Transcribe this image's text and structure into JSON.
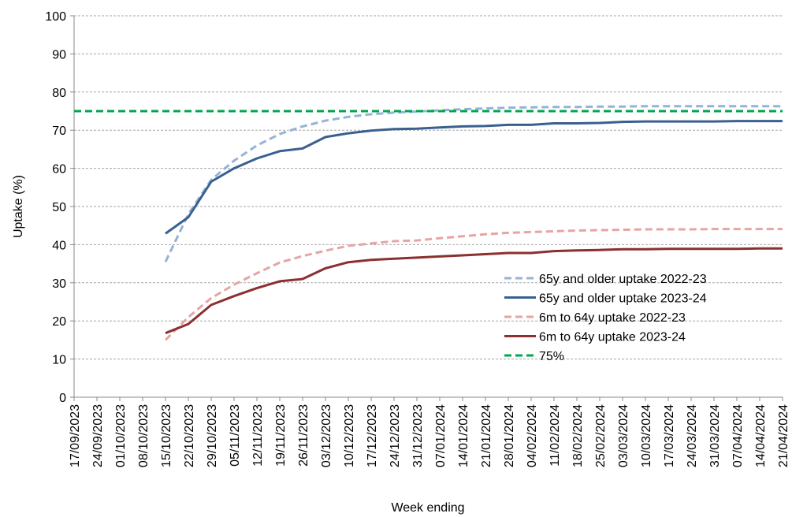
{
  "chart_data": {
    "type": "line",
    "title": "",
    "xlabel": "Week ending",
    "ylabel": "Uptake (%)",
    "ylim": [
      0,
      100
    ],
    "yticks": [
      0,
      10,
      20,
      30,
      40,
      50,
      60,
      70,
      80,
      90,
      100
    ],
    "grid": "horizontal",
    "legend_position": "bottom-right",
    "categories": [
      "17/09/2023",
      "24/09/2023",
      "01/10/2023",
      "08/10/2023",
      "15/10/2023",
      "22/10/2023",
      "29/10/2023",
      "05/11/2023",
      "12/11/2023",
      "19/11/2023",
      "26/11/2023",
      "03/12/2023",
      "10/12/2023",
      "17/12/2023",
      "24/12/2023",
      "31/12/2023",
      "07/01/2024",
      "14/01/2024",
      "21/01/2024",
      "28/01/2024",
      "04/02/2024",
      "11/02/2024",
      "18/02/2024",
      "25/02/2024",
      "03/03/2024",
      "10/03/2024",
      "17/03/2024",
      "24/03/2024",
      "31/03/2024",
      "07/04/2024",
      "14/04/2024",
      "21/04/2024"
    ],
    "series": [
      {
        "name": "65y and older uptake 2022-23",
        "color": "#95b3d7",
        "dash": "dashed",
        "values": [
          null,
          null,
          null,
          null,
          35.5,
          48,
          57,
          62,
          66,
          69,
          71,
          72.5,
          73.5,
          74.2,
          74.6,
          74.9,
          75.2,
          75.5,
          75.7,
          75.9,
          76,
          76.1,
          76.1,
          76.2,
          76.2,
          76.3,
          76.3,
          76.3,
          76.3,
          76.3,
          76.3,
          76.3
        ]
      },
      {
        "name": "65y and older uptake 2023-24",
        "color": "#3a6090",
        "dash": "solid",
        "values": [
          null,
          null,
          null,
          null,
          42.9,
          47.2,
          56.5,
          60,
          62.6,
          64.5,
          65.2,
          68.2,
          69.2,
          69.9,
          70.3,
          70.4,
          70.7,
          71,
          71.1,
          71.4,
          71.4,
          71.8,
          71.8,
          71.9,
          72.2,
          72.3,
          72.3,
          72.3,
          72.3,
          72.4,
          72.4,
          72.4
        ]
      },
      {
        "name": "6m to 64y uptake 2022-23",
        "color": "#e6a4a4",
        "dash": "dashed",
        "values": [
          null,
          null,
          null,
          null,
          15,
          21,
          26,
          29.5,
          32.5,
          35.3,
          37,
          38.4,
          39.7,
          40.3,
          40.9,
          41.1,
          41.7,
          42.2,
          42.7,
          43.1,
          43.3,
          43.5,
          43.7,
          43.8,
          43.9,
          44,
          44,
          44,
          44.1,
          44.1,
          44.1,
          44.1
        ]
      },
      {
        "name": "6m to 64y uptake 2023-24",
        "color": "#8c2f2f",
        "dash": "solid",
        "values": [
          null,
          null,
          null,
          null,
          16.8,
          19.2,
          24.2,
          26.5,
          28.6,
          30.4,
          31,
          33.8,
          35.4,
          36,
          36.3,
          36.6,
          36.9,
          37.2,
          37.5,
          37.8,
          37.8,
          38.3,
          38.5,
          38.6,
          38.8,
          38.8,
          38.9,
          38.9,
          38.9,
          38.9,
          39,
          39
        ]
      },
      {
        "name": "75%",
        "color": "#00a651",
        "dash": "dashed",
        "values": [
          75,
          75,
          75,
          75,
          75,
          75,
          75,
          75,
          75,
          75,
          75,
          75,
          75,
          75,
          75,
          75,
          75,
          75,
          75,
          75,
          75,
          75,
          75,
          75,
          75,
          75,
          75,
          75,
          75,
          75,
          75,
          75
        ]
      }
    ]
  }
}
